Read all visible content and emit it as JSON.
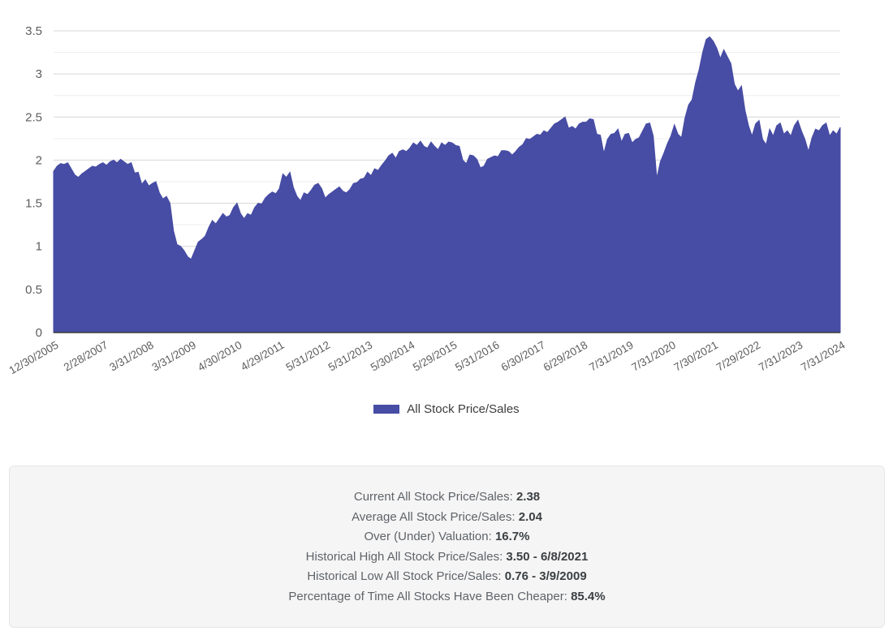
{
  "chart": {
    "legend_label": "All Stock Price/Sales"
  },
  "colors": {
    "series": "#474CA4",
    "grid_major": "#d6d6d6",
    "grid_minor": "#ededed",
    "baseline": "#3c3c3c",
    "axis_text": "#5c5c5c",
    "legend_text": "#3d3d3d"
  },
  "chart_data": {
    "type": "area",
    "title": "",
    "xlabel": "",
    "ylabel": "",
    "series_name": "All Stock Price/Sales",
    "frequency": "monthly",
    "x_start": "12/30/2005",
    "x_end": "7/31/2024",
    "ylim": [
      0,
      3.5
    ],
    "y_ticks": [
      0,
      0.5,
      1,
      1.5,
      2,
      2.5,
      3,
      3.5
    ],
    "y_minor_step": 0.25,
    "grid": "on",
    "legend_position": "bottom",
    "tick_labels": [
      "12/30/2005",
      "2/28/2007",
      "3/31/2008",
      "3/31/2009",
      "4/30/2010",
      "4/29/2011",
      "5/31/2012",
      "5/31/2013",
      "5/30/2014",
      "5/29/2015",
      "5/31/2016",
      "6/30/2017",
      "6/29/2018",
      "7/31/2019",
      "7/31/2020",
      "7/30/2021",
      "7/29/2022",
      "7/31/2023",
      "7/31/2024"
    ],
    "tick_indices": [
      0,
      14,
      27,
      39,
      52,
      64,
      77,
      89,
      101,
      113,
      125,
      138,
      150,
      163,
      175,
      187,
      199,
      211,
      223
    ],
    "values": [
      1.87,
      1.93,
      1.96,
      1.95,
      1.97,
      1.9,
      1.83,
      1.8,
      1.84,
      1.87,
      1.9,
      1.93,
      1.92,
      1.95,
      1.97,
      1.94,
      1.98,
      2.0,
      1.97,
      2.01,
      1.98,
      1.95,
      1.97,
      1.85,
      1.86,
      1.72,
      1.77,
      1.7,
      1.73,
      1.75,
      1.62,
      1.55,
      1.58,
      1.5,
      1.18,
      1.02,
      1.0,
      0.95,
      0.88,
      0.85,
      0.95,
      1.05,
      1.08,
      1.12,
      1.22,
      1.3,
      1.26,
      1.32,
      1.38,
      1.34,
      1.36,
      1.45,
      1.5,
      1.38,
      1.32,
      1.38,
      1.36,
      1.45,
      1.5,
      1.49,
      1.56,
      1.6,
      1.63,
      1.61,
      1.67,
      1.84,
      1.8,
      1.86,
      1.68,
      1.58,
      1.53,
      1.62,
      1.6,
      1.65,
      1.71,
      1.73,
      1.67,
      1.56,
      1.6,
      1.63,
      1.66,
      1.69,
      1.64,
      1.62,
      1.66,
      1.73,
      1.74,
      1.78,
      1.79,
      1.86,
      1.82,
      1.9,
      1.88,
      1.94,
      1.99,
      2.05,
      2.08,
      2.02,
      2.1,
      2.12,
      2.1,
      2.14,
      2.2,
      2.17,
      2.22,
      2.16,
      2.14,
      2.21,
      2.16,
      2.12,
      2.2,
      2.17,
      2.21,
      2.2,
      2.17,
      2.16,
      2.0,
      1.96,
      2.06,
      2.05,
      2.01,
      1.91,
      1.93,
      2.01,
      2.03,
      2.05,
      2.04,
      2.11,
      2.11,
      2.1,
      2.06,
      2.1,
      2.15,
      2.18,
      2.25,
      2.24,
      2.27,
      2.3,
      2.29,
      2.34,
      2.32,
      2.37,
      2.42,
      2.44,
      2.47,
      2.5,
      2.37,
      2.39,
      2.36,
      2.42,
      2.44,
      2.44,
      2.48,
      2.47,
      2.3,
      2.29,
      2.08,
      2.24,
      2.3,
      2.31,
      2.36,
      2.21,
      2.3,
      2.31,
      2.2,
      2.24,
      2.26,
      2.34,
      2.42,
      2.43,
      2.28,
      1.79,
      1.98,
      2.08,
      2.19,
      2.28,
      2.41,
      2.3,
      2.26,
      2.49,
      2.64,
      2.7,
      2.9,
      3.05,
      3.25,
      3.4,
      3.43,
      3.38,
      3.3,
      3.18,
      3.28,
      3.2,
      3.12,
      2.88,
      2.8,
      2.86,
      2.58,
      2.4,
      2.28,
      2.42,
      2.46,
      2.24,
      2.18,
      2.36,
      2.28,
      2.4,
      2.43,
      2.3,
      2.34,
      2.28,
      2.4,
      2.46,
      2.34,
      2.24,
      2.1,
      2.26,
      2.36,
      2.34,
      2.4,
      2.43,
      2.28,
      2.34,
      2.3,
      2.38
    ]
  },
  "stats_panel": {
    "rows": [
      {
        "label": "Current All Stock Price/Sales:",
        "value": "2.38"
      },
      {
        "label": "Average All Stock Price/Sales:",
        "value": "2.04"
      },
      {
        "label": "Over (Under) Valuation:",
        "value": "16.7%"
      },
      {
        "label": "Historical High All Stock Price/Sales:",
        "value": "3.50 - 6/8/2021"
      },
      {
        "label": "Historical Low All Stock Price/Sales:",
        "value": "0.76 - 3/9/2009"
      },
      {
        "label": "Percentage of Time All Stocks Have Been Cheaper:",
        "value": "85.4%"
      }
    ]
  }
}
